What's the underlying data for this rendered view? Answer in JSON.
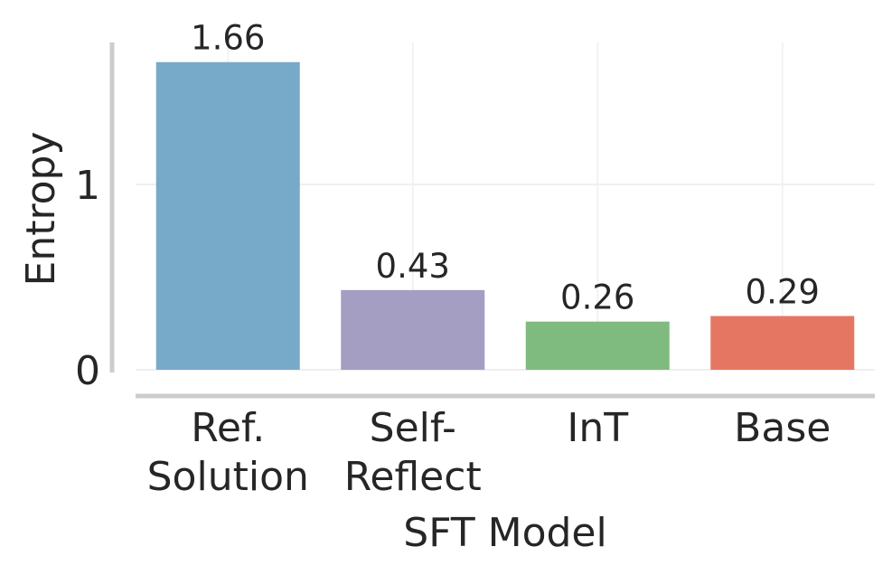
{
  "chart_data": {
    "type": "bar",
    "categories": [
      [
        "Ref.",
        "Solution"
      ],
      [
        "Self-",
        "Reflect"
      ],
      [
        "InT"
      ],
      [
        "Base"
      ]
    ],
    "values": [
      1.66,
      0.43,
      0.26,
      0.29
    ],
    "data_labels": [
      "1.66",
      "0.43",
      "0.26",
      "0.29"
    ],
    "colors": [
      "#77a9c9",
      "#a39ec2",
      "#7fbb7f",
      "#e57762"
    ],
    "title": "",
    "xlabel": "SFT Model",
    "ylabel": "Entropy",
    "yticks": [
      0,
      1
    ],
    "ytick_labels": [
      "0",
      "1"
    ],
    "ylim": [
      0,
      1.75
    ],
    "grid": true,
    "legend": "none"
  }
}
